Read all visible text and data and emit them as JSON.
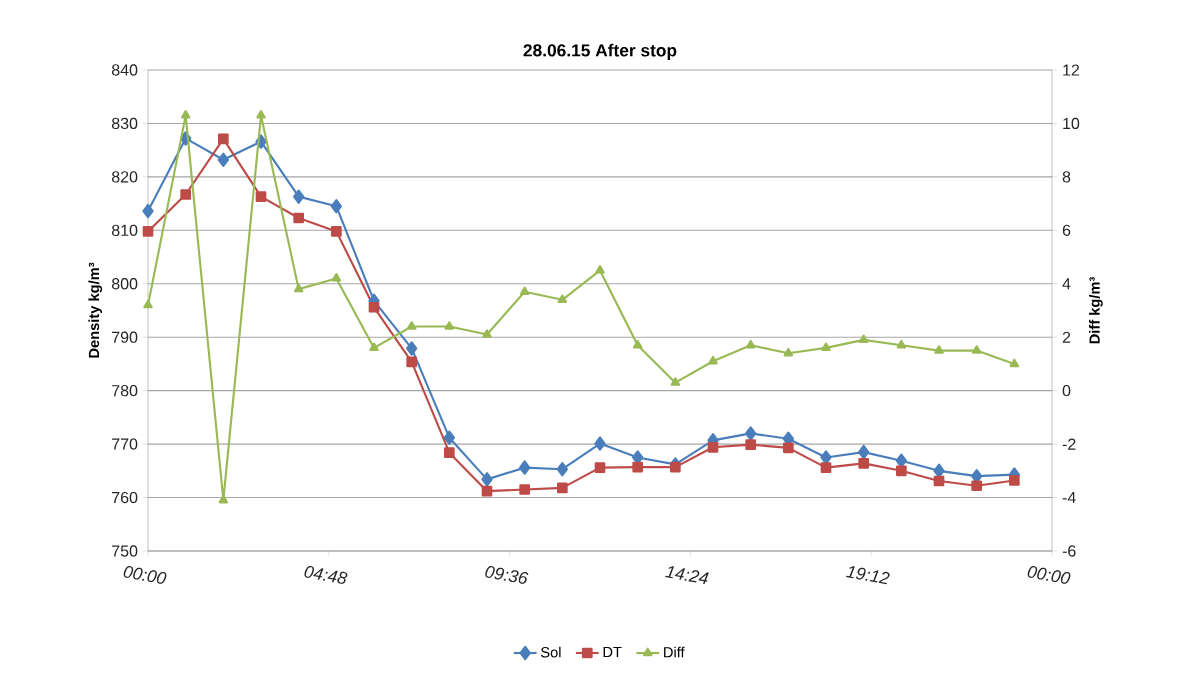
{
  "chart_data": {
    "type": "line",
    "title": "28.06.15 After stop",
    "ylabel": "Density kg/m³",
    "y2label": "Diff kg/m³",
    "x": [
      0,
      1,
      2,
      3,
      4,
      5,
      6,
      7,
      8,
      9,
      10,
      11,
      12,
      13,
      14,
      15,
      16,
      17,
      18,
      19,
      20,
      21,
      22,
      23
    ],
    "xlim": [
      0,
      24
    ],
    "xticks": [
      {
        "value": 0,
        "label": "00:00"
      },
      {
        "value": 4.8,
        "label": "04:48"
      },
      {
        "value": 9.6,
        "label": "09:36"
      },
      {
        "value": 14.4,
        "label": "14:24"
      },
      {
        "value": 19.2,
        "label": "19:12"
      },
      {
        "value": 24,
        "label": "00:00"
      }
    ],
    "ylim": [
      750,
      840
    ],
    "yticks": [
      750,
      760,
      770,
      780,
      790,
      800,
      810,
      820,
      830,
      840
    ],
    "y2lim": [
      -6,
      12
    ],
    "y2ticks": [
      -6,
      -4,
      -2,
      0,
      2,
      4,
      6,
      8,
      10,
      12
    ],
    "grid": "y",
    "legend": "bottom",
    "series": [
      {
        "name": "Sol",
        "color": "#4a7ebb",
        "marker": "diamond",
        "values": [
          813.6,
          827.2,
          823.2,
          826.6,
          816.3,
          814.5,
          796.8,
          787.9,
          771.2,
          763.4,
          765.6,
          765.3,
          770.1,
          767.5,
          766.2,
          770.7,
          772.0,
          771.0,
          767.5,
          768.5,
          766.9,
          765.0,
          764.0,
          764.3
        ]
      },
      {
        "name": "DT",
        "color": "#be4b48",
        "marker": "square",
        "values": [
          809.8,
          816.7,
          827.1,
          816.3,
          812.3,
          809.8,
          795.6,
          785.4,
          768.4,
          761.2,
          761.5,
          761.8,
          765.6,
          765.7,
          765.7,
          769.4,
          769.9,
          769.3,
          765.6,
          766.4,
          765.0,
          763.1,
          762.2,
          763.2
        ]
      },
      {
        "name": "Diff",
        "color": "#98b954",
        "marker": "triangle",
        "axis": "y2",
        "values": [
          3.2,
          10.3,
          -4.1,
          10.3,
          3.8,
          4.2,
          1.6,
          2.4,
          2.4,
          2.1,
          3.7,
          3.4,
          4.5,
          1.7,
          0.3,
          1.1,
          1.7,
          1.4,
          1.6,
          1.9,
          1.7,
          1.5,
          1.5,
          1.0
        ]
      }
    ]
  }
}
